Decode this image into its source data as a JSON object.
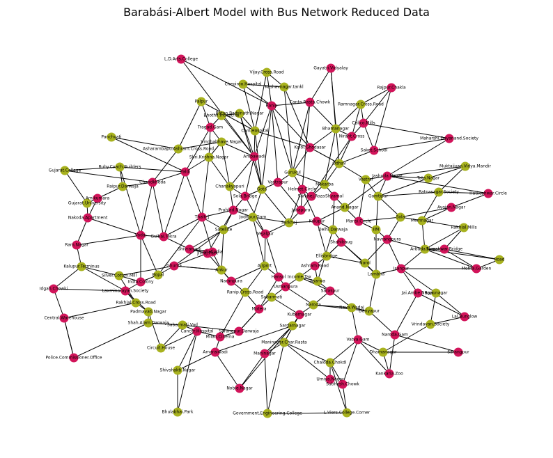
{
  "title": "Barabási-Albert Model with Bus Network Reduced Data",
  "colors": {
    "group_a": "#d2145a",
    "group_b": "#a8b21e",
    "edge": "#000000"
  },
  "nodes": [
    {
      "id": "ld",
      "label": "L.D.Arts.College",
      "c": "a"
    },
    {
      "id": "vij",
      "label": "Vijay.Cross.Road",
      "c": "b"
    },
    {
      "id": "gay",
      "label": "Gayatri.Vidyalay",
      "c": "a"
    },
    {
      "id": "che",
      "label": "Chepiroo.Hospital",
      "c": "b"
    },
    {
      "id": "kes",
      "label": "Keshavnagar.tankl",
      "c": "b"
    },
    {
      "id": "raj",
      "label": "Rajpur.Chakla",
      "c": "a"
    },
    {
      "id": "ran",
      "label": "Ranip",
      "c": "a"
    },
    {
      "id": "ram",
      "label": "Ramnagar.Cross.Road",
      "c": "b"
    },
    {
      "id": "cant",
      "label": "Canta.Rasta.Chowk",
      "c": "a"
    },
    {
      "id": "pal",
      "label": "Palpur",
      "c": "b"
    },
    {
      "id": "bho",
      "label": "Bhothii.Industrial",
      "c": "b"
    },
    {
      "id": "bat",
      "label": "Batan.Badrinath.Nagar",
      "c": "b"
    },
    {
      "id": "cal",
      "label": "Calico.Mills",
      "c": "a"
    },
    {
      "id": "tra",
      "label": "Tragad.Gam",
      "c": "a"
    },
    {
      "id": "civ",
      "label": "Civil.Hospital",
      "c": "b"
    },
    {
      "id": "bha",
      "label": "Bhamanagar",
      "c": "b"
    },
    {
      "id": "pan",
      "label": "Panchvati",
      "c": "b"
    },
    {
      "id": "ash",
      "label": "Asharambapu.Ashram.Cross.Road",
      "c": "b"
    },
    {
      "id": "vin",
      "label": "Vinobabhave.Nagar",
      "c": "b"
    },
    {
      "id": "mah",
      "label": "Maharshi.Dayanand.Society",
      "c": "a"
    },
    {
      "id": "guj",
      "label": "Gujarat.College",
      "c": "b"
    },
    {
      "id": "rub",
      "label": "Ruby.Coach.Builders",
      "c": "b"
    },
    {
      "id": "muk",
      "label": "Muktajivan.Vidya.Mandir",
      "c": "b"
    },
    {
      "id": "tat",
      "label": "Tata.Nagar",
      "c": "b"
    },
    {
      "id": "rai",
      "label": "Raipur.Darwaja",
      "c": "b"
    },
    {
      "id": "rat",
      "label": "Ratnasagar.Society",
      "c": "b"
    },
    {
      "id": "hat",
      "label": "Hatkeshwar.Circle",
      "c": "a"
    },
    {
      "id": "gjs",
      "label": "Gujarat.University",
      "c": "b"
    },
    {
      "id": "aya",
      "label": "Ayojan.Nagar",
      "c": "a"
    },
    {
      "id": "nak",
      "label": "Nakoda.Apartment",
      "c": "a"
    },
    {
      "id": "ami",
      "label": "Amikumara",
      "c": "a"
    },
    {
      "id": "ramol",
      "label": "Ram.Nagar",
      "c": "a"
    },
    {
      "id": "rakm",
      "label": "Rakhial.Mills",
      "c": "b"
    },
    {
      "id": "kal",
      "label": "Kalupur.Terminus",
      "c": "b"
    },
    {
      "id": "sil",
      "label": "Silver.Cotton.Mill",
      "c": "b"
    },
    {
      "id": "idg",
      "label": "Idgah.Chowki",
      "c": "a"
    },
    {
      "id": "cen",
      "label": "Central.Warehouse",
      "c": "a"
    },
    {
      "id": "pol",
      "label": "Police.Commissioner.Office",
      "c": "a"
    },
    {
      "id": "cir",
      "label": "Circuit.House",
      "c": "b"
    },
    {
      "id": "shv",
      "label": "Shivshakti.Nagar",
      "c": "b"
    },
    {
      "id": "bhu",
      "label": "Bhulabhai.Park",
      "c": "b"
    },
    {
      "id": "nob",
      "label": "Nobie.Nagar",
      "c": "a"
    },
    {
      "id": "gov",
      "label": "Government.Engineering.College",
      "c": "b"
    },
    {
      "id": "lvc",
      "label": "L.Viers.College.Corner",
      "c": "b"
    },
    {
      "id": "kan",
      "label": "Kankaria.Zoo",
      "c": "a"
    },
    {
      "id": "sar",
      "label": "Sarangpur",
      "c": "a"
    },
    {
      "id": "vri",
      "label": "Vrindavan.Society",
      "c": "b"
    },
    {
      "id": "lal",
      "label": "Lal.Bunglow",
      "c": "a"
    },
    {
      "id": "sub",
      "label": "Subhash.Chowk",
      "c": "a"
    },
    {
      "id": "umi",
      "label": "Umiya.Nagar",
      "c": "a"
    },
    {
      "id": "dha",
      "label": "Dhamanagar",
      "c": "b"
    },
    {
      "id": "road",
      "label": "Road",
      "c": "b"
    },
    {
      "id": "meh",
      "label": "Mehta.Garden",
      "c": "a"
    },
    {
      "id": "sur",
      "label": "Sureshwar.Bridge",
      "c": "a"
    },
    {
      "id": "nar",
      "label": "Naroda.Gam",
      "c": "a"
    },
    {
      "id": "che2",
      "label": "Chaloda.Chokdi",
      "c": "b"
    },
    {
      "id": "vat",
      "label": "Vatva.Gam",
      "c": "a"
    },
    {
      "id": "jai",
      "label": "Jai.Ambe.Nagar",
      "c": "a"
    },
    {
      "id": "dar",
      "label": "Dariyapur",
      "c": "b"
    },
    {
      "id": "bap",
      "label": "Bapunagar",
      "c": "b"
    },
    {
      "id": "nav",
      "label": "Nava.Wadaj",
      "c": "b"
    },
    {
      "id": "man",
      "label": "Maninagar.Char.Rasta",
      "c": "b"
    },
    {
      "id": "can2",
      "label": "Cancer.Hospital",
      "c": "a"
    },
    {
      "id": "pad",
      "label": "Padmavati.Nagar",
      "c": "b"
    },
    {
      "id": "sha",
      "label": "Shah.Alam.Darwaja",
      "c": "b"
    },
    {
      "id": "rak",
      "label": "Rakhial.Cross.Road",
      "c": "b"
    },
    {
      "id": "lax",
      "label": "Laxminarayan.Society",
      "c": "a"
    },
    {
      "id": "sab",
      "label": "Sabarmati.Vad",
      "c": "b"
    },
    {
      "id": "sar2",
      "label": "Sarangpur.Darwaja",
      "c": "a"
    },
    {
      "id": "mil",
      "label": "Milan.Cinema",
      "c": "a"
    },
    {
      "id": "ama",
      "label": "Amaraiwadi",
      "c": "a"
    },
    {
      "id": "man2",
      "label": "Maninagar",
      "c": "a"
    },
    {
      "id": "ind",
      "label": "India.Colony",
      "c": "a"
    },
    {
      "id": "sak",
      "label": "Saket.School",
      "c": "a"
    },
    {
      "id": "nir",
      "label": "Nirant.Cross",
      "c": "a"
    },
    {
      "id": "ode",
      "label": "Odhav",
      "c": "b"
    },
    {
      "id": "vas",
      "label": "Vastral",
      "c": "b"
    },
    {
      "id": "kal2",
      "label": "Kalol.Ghodasar",
      "c": "a"
    },
    {
      "id": "amb",
      "label": "Ambawadi",
      "c": "a"
    },
    {
      "id": "jas",
      "label": "Jashoda.Nagar",
      "c": "a"
    },
    {
      "id": "shr",
      "label": "Shri.Krishna.Nagar",
      "c": "b"
    },
    {
      "id": "pal2",
      "label": "Paldi",
      "c": "a"
    },
    {
      "id": "chan",
      "label": "Chandkheda",
      "c": "a"
    },
    {
      "id": "gom",
      "label": "Gomtipur",
      "c": "b"
    },
    {
      "id": "mem",
      "label": "Memnagar",
      "c": "b"
    },
    {
      "id": "sol",
      "label": "Sola",
      "c": "b"
    },
    {
      "id": "gul",
      "label": "Gulbai.Tekra",
      "c": "a"
    },
    {
      "id": "vad",
      "label": "Vadaj",
      "c": "a"
    },
    {
      "id": "nar2",
      "label": "Narol",
      "c": "b"
    },
    {
      "id": "shi",
      "label": "Shivranjani",
      "c": "a"
    },
    {
      "id": "jiv",
      "label": "Jivraj.Park",
      "c": "a"
    },
    {
      "id": "aru",
      "label": "Arbuda.Nagar",
      "c": "b"
    },
    {
      "id": "isa",
      "label": "Isanpur",
      "c": "a"
    },
    {
      "id": "lam",
      "label": "Lambha",
      "c": "b"
    },
    {
      "id": "ghu",
      "label": "Ghuma",
      "c": "a"
    },
    {
      "id": "bop",
      "label": "Bopal",
      "c": "b"
    },
    {
      "id": "thal",
      "label": "Thaltej",
      "c": "a"
    },
    {
      "id": "sat",
      "label": "Satellite",
      "c": "b"
    },
    {
      "id": "pra",
      "label": "Prahlad.Nagar",
      "c": "a"
    },
    {
      "id": "jod",
      "label": "Jodhpur.Gam",
      "c": "b"
    },
    {
      "id": "vej",
      "label": "Vejalpur",
      "c": "a"
    },
    {
      "id": "sarkhej",
      "label": "Sarkhej",
      "c": "b"
    },
    {
      "id": "jua",
      "label": "Juhapura",
      "c": "a"
    },
    {
      "id": "sar3",
      "label": "Sarkhej.Roza",
      "c": "a"
    },
    {
      "id": "mak",
      "label": "Makarba",
      "c": "b"
    },
    {
      "id": "shy",
      "label": "Shyamal",
      "c": "a"
    },
    {
      "id": "ana",
      "label": "Anand.Nagar",
      "c": "b"
    },
    {
      "id": "man3",
      "label": "Mansi.Circle",
      "c": "a"
    },
    {
      "id": "iim",
      "label": "IIM",
      "c": "b"
    },
    {
      "id": "nav2",
      "label": "Navrangpura",
      "c": "a"
    },
    {
      "id": "ell",
      "label": "Ellisbridge",
      "c": "b"
    },
    {
      "id": "ash2",
      "label": "Ashram.Road",
      "c": "a"
    },
    {
      "id": "inc",
      "label": "Income.Tax",
      "c": "b"
    },
    {
      "id": "usm",
      "label": "Usmanpura",
      "c": "a"
    },
    {
      "id": "sab2",
      "label": "Sabarmati",
      "c": "b"
    },
    {
      "id": "mot",
      "label": "Motera",
      "c": "a"
    },
    {
      "id": "ran2",
      "label": "Ranip.Cross.Road",
      "c": "b"
    },
    {
      "id": "nav3",
      "label": "Naranpura",
      "c": "a"
    },
    {
      "id": "ank",
      "label": "Ankur",
      "c": "b"
    },
    {
      "id": "ghat",
      "label": "Ghatlodia",
      "c": "a"
    },
    {
      "id": "chan2",
      "label": "Chanakyapuri",
      "c": "b"
    },
    {
      "id": "sola2",
      "label": "Sola.Bridge",
      "c": "a"
    },
    {
      "id": "gota",
      "label": "Gota",
      "c": "b"
    },
    {
      "id": "vas2",
      "label": "Vastrapur",
      "c": "a"
    },
    {
      "id": "gurukul",
      "label": "Gurukul",
      "c": "b"
    },
    {
      "id": "hel",
      "label": "Helmet.Circle",
      "c": "a"
    },
    {
      "id": "kal3",
      "label": "Kalupur",
      "c": "a"
    },
    {
      "id": "del",
      "label": "Delhi.Darwaja",
      "c": "b"
    },
    {
      "id": "sha2",
      "label": "Shahibaug",
      "c": "a"
    },
    {
      "id": "asa",
      "label": "Asarwa",
      "c": "b"
    },
    {
      "id": "sar4",
      "label": "Saraspur",
      "c": "a"
    },
    {
      "id": "nar3",
      "label": "Naroda",
      "c": "b"
    },
    {
      "id": "kub",
      "label": "Kubernagar",
      "c": "a"
    },
    {
      "id": "sar5",
      "label": "Sardarnagar",
      "c": "b"
    },
    {
      "id": "had",
      "label": "Hansol",
      "c": "a"
    },
    {
      "id": "air",
      "label": "Airport",
      "c": "b"
    }
  ]
}
